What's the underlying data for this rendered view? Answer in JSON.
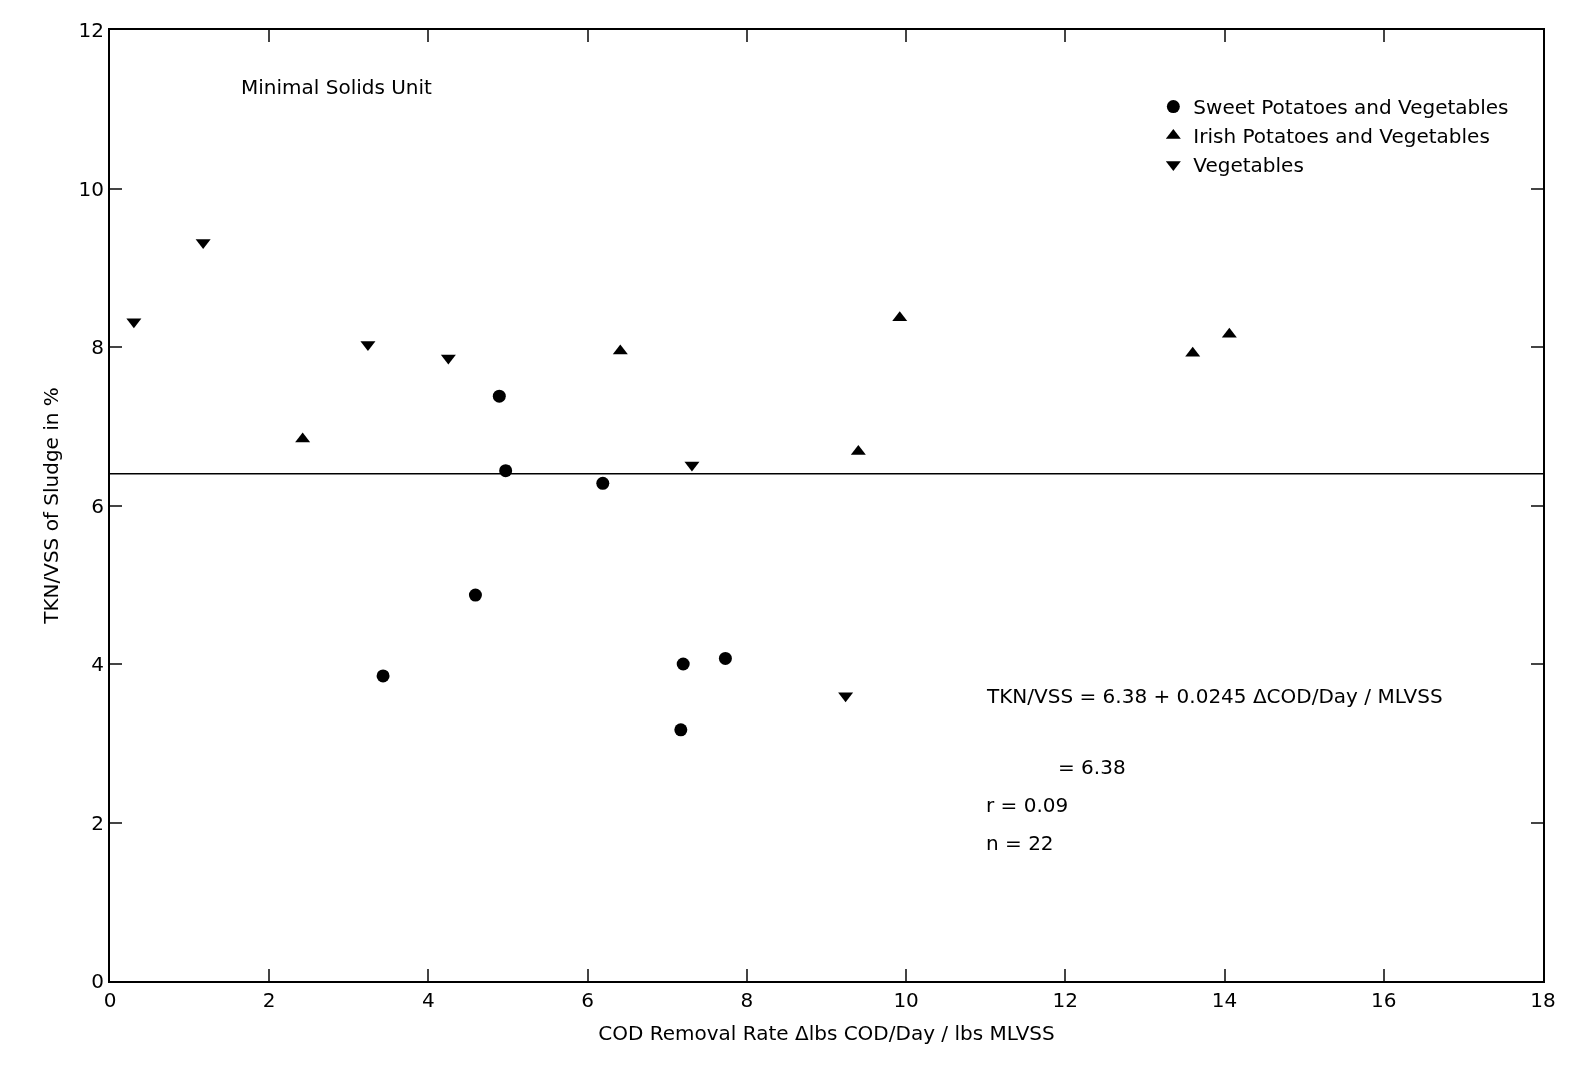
{
  "chart_data": {
    "type": "scatter",
    "xlabel": "COD Removal Rate Δlbs COD/Day / lbs MLVSS",
    "ylabel": "TKN/VSS of Sludge in %",
    "xlim": [
      0,
      18
    ],
    "xticks": [
      0,
      2,
      4,
      6,
      8,
      10,
      12,
      14,
      16,
      18
    ],
    "ylim": [
      0,
      12
    ],
    "yticks": [
      0,
      2,
      4,
      6,
      8,
      10,
      12
    ],
    "legend": "top right",
    "series": [
      {
        "name": "Sweet Potatoes and Vegetables",
        "color": "#000000",
        "marker": "circle",
        "x": [
          3.43,
          4.59,
          4.89,
          4.97,
          6.19,
          7.2,
          7.17,
          7.73
        ],
        "values": [
          3.85,
          4.87,
          7.38,
          6.44,
          6.28,
          4.0,
          3.17,
          4.07
        ]
      },
      {
        "name": "Irish Potatoes and Vegetables",
        "color": "#000000",
        "marker": "triangle",
        "x": [
          2.42,
          6.41,
          9.4,
          9.92,
          13.6,
          14.06
        ],
        "values": [
          6.84,
          7.95,
          6.68,
          8.37,
          7.92,
          8.16
        ]
      },
      {
        "name": "Vegetables",
        "color": "#000000",
        "marker": "triangle-down",
        "x": [
          0.3,
          1.17,
          3.24,
          4.25,
          7.31,
          9.24
        ],
        "values": [
          8.32,
          9.32,
          8.03,
          7.86,
          6.51,
          3.6
        ]
      }
    ],
    "ref_lines": [
      {
        "axis": "y",
        "value": 6.4,
        "color": "#000000"
      }
    ],
    "annotations": [
      "Minimal Solids Unit",
      "TKN/VSS = 6.38 + 0.0245 ΔCOD/Day / MLVSS",
      "= 6.38",
      "r = 0.09",
      "n = 22"
    ]
  }
}
